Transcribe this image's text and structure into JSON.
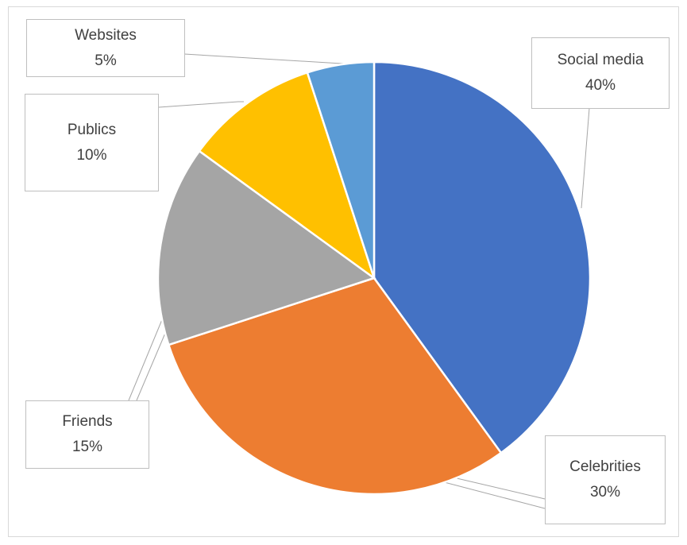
{
  "chart_data": {
    "type": "pie",
    "slices": [
      {
        "label": "Social media",
        "value": 40,
        "display": "40%",
        "color": "#4472c4"
      },
      {
        "label": "Celebrities",
        "value": 30,
        "display": "30%",
        "color": "#ed7d31"
      },
      {
        "label": "Friends",
        "value": 15,
        "display": "15%",
        "color": "#a5a5a5"
      },
      {
        "label": "Publics",
        "value": 10,
        "display": "10%",
        "color": "#ffc000"
      },
      {
        "label": "Websites",
        "value": 5,
        "display": "5%",
        "color": "#5b9bd5"
      }
    ],
    "start_angle_deg": 0,
    "direction": "clockwise",
    "legend": "none",
    "data_labels": "callouts with leader lines"
  }
}
